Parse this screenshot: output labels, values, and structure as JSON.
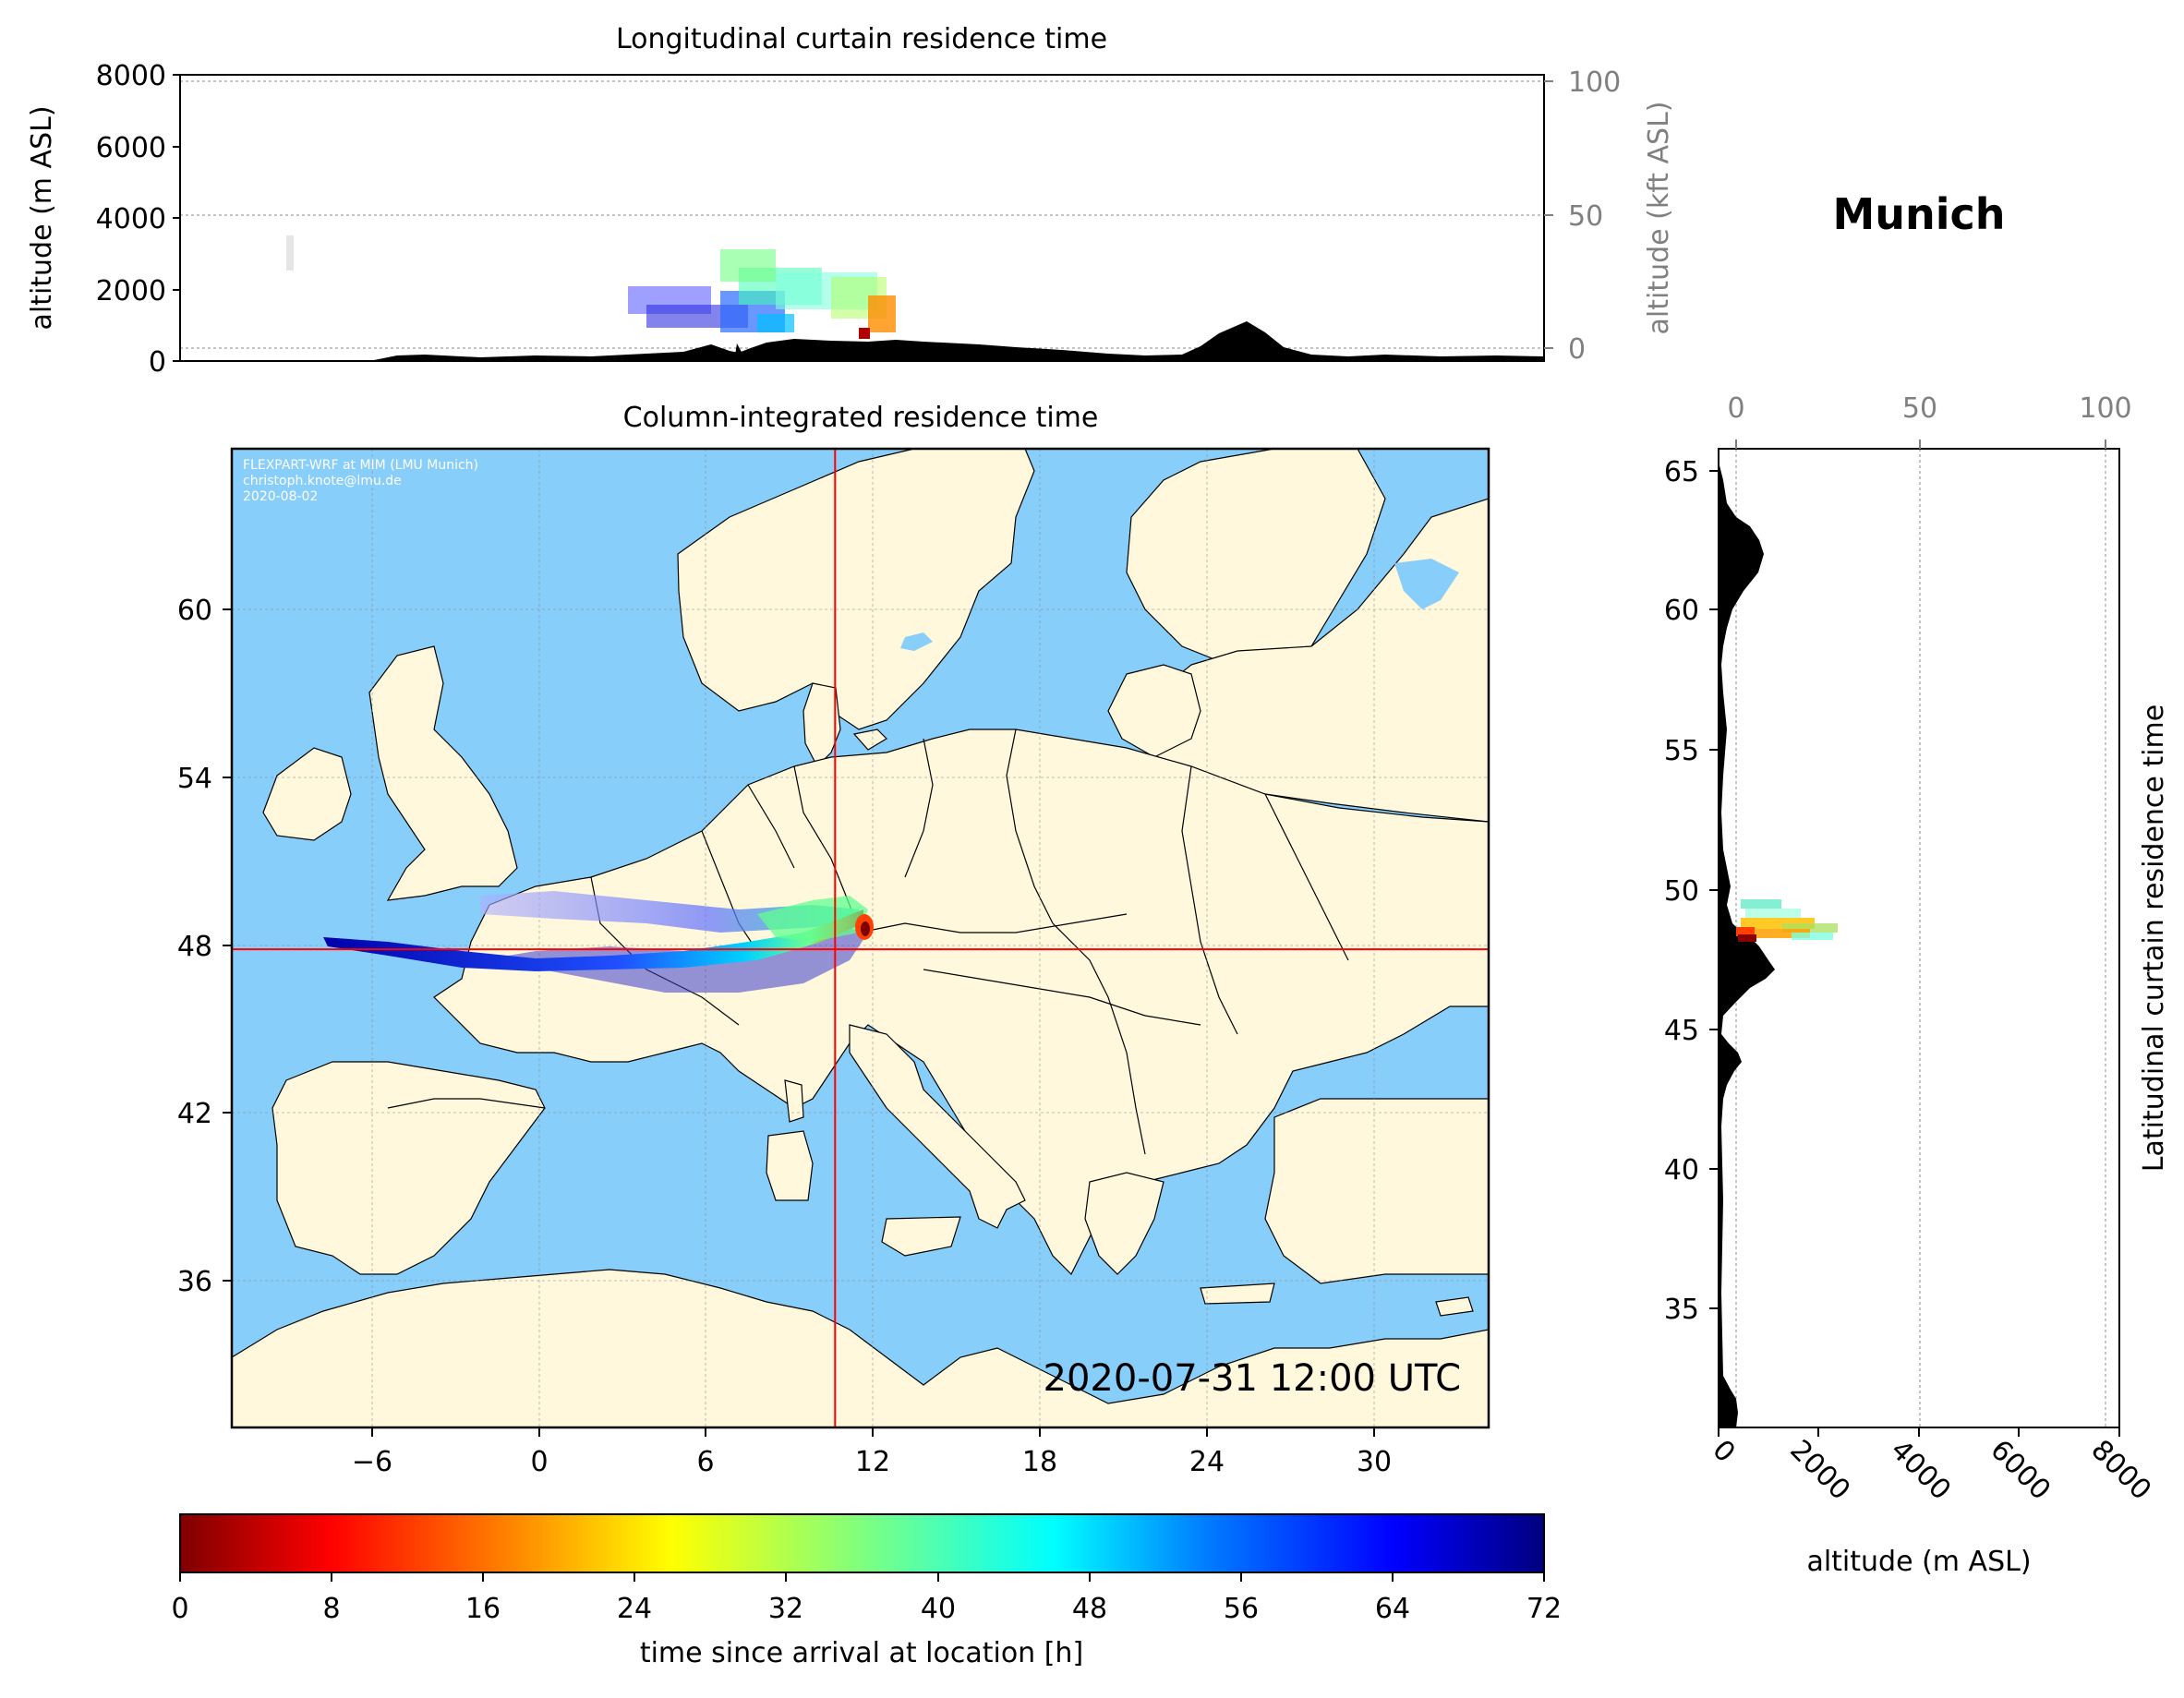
{
  "location": "Munich",
  "colors": {
    "ocean": "#87CEFA",
    "land": "#FFF8DC",
    "terrain": "#000000",
    "crosshair": "#ff0000",
    "secondary_axis": "#808080"
  },
  "top_panel": {
    "title": "Longitudinal curtain residence time",
    "ylabel": "altitude (m ASL)",
    "ylabel_right": "altitude (kft ASL)",
    "yticks": [
      "0",
      "2000",
      "4000",
      "6000",
      "8000"
    ],
    "yticks_right": [
      "0",
      "50",
      "100"
    ]
  },
  "map_panel": {
    "title": "Column-integrated residence time",
    "xticks": [
      "−6",
      "0",
      "6",
      "12",
      "18",
      "24",
      "30"
    ],
    "yticks": [
      "36",
      "42",
      "48",
      "54",
      "60"
    ],
    "credit_lines": [
      "FLEXPART-WRF at MIM (LMU Munich)",
      "christoph.knote@lmu.de",
      "2020-08-02"
    ],
    "timestamp": "2020-07-31 12:00 UTC",
    "release_lon": 11.6,
    "release_lat": 48.1
  },
  "side_panel": {
    "title": "Latitudinal curtain residence time",
    "xlabel": "altitude (m ASL)",
    "xticks_bottom": [
      "0",
      "2000",
      "4000",
      "6000",
      "8000"
    ],
    "xticks_top": [
      "0",
      "50",
      "100"
    ],
    "yticks": [
      "35",
      "40",
      "45",
      "50",
      "55",
      "60",
      "65"
    ]
  },
  "colorbar": {
    "label": "time since arrival at location [h]",
    "ticks": [
      "0",
      "8",
      "16",
      "24",
      "32",
      "40",
      "48",
      "56",
      "64",
      "72"
    ],
    "min": 0,
    "max": 72,
    "colormap": "jet_r"
  }
}
